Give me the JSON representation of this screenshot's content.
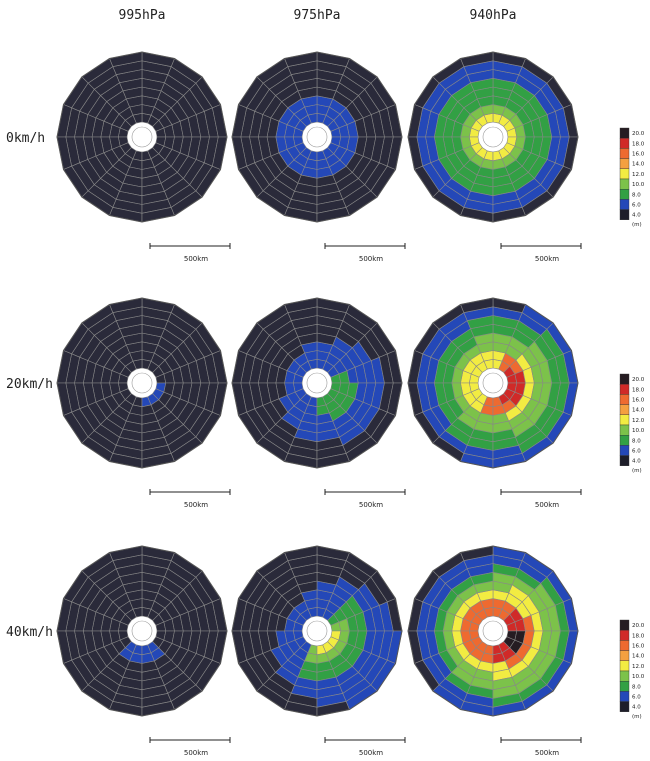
{
  "columns": [
    "995hPa",
    "975hPa",
    "940hPa"
  ],
  "rows": [
    "0km/h",
    "20km/h",
    "40km/h"
  ],
  "scale_bar_label": "500km",
  "legend": {
    "labels": [
      "20.0",
      "18.0",
      "16.0",
      "14.0",
      "12.0",
      "10.0",
      "8.0",
      "6.0",
      "4.0"
    ],
    "unit": "(m)",
    "colors": [
      "#251c22",
      "#d02a28",
      "#ee6a30",
      "#f4a040",
      "#f2ec42",
      "#7cc24a",
      "#32a044",
      "#2448b8",
      "#1e1e2a"
    ]
  },
  "palette": {
    "background_cell": "#2a2a3a",
    "blue": "#2448b8",
    "green": "#32a044",
    "lightgreen": "#7cc24a",
    "yellow": "#f2ec42",
    "orange": "#ee6a30",
    "red": "#d02a28",
    "dark": "#251c22",
    "grid": "#888888"
  },
  "panels": [
    [
      {
        "id": "p-0-0",
        "pattern": "none"
      },
      {
        "id": "p-0-1",
        "pattern": "ring-blue-small"
      },
      {
        "id": "p-0-2",
        "pattern": "ring-940-0"
      }
    ],
    [
      {
        "id": "p-1-0",
        "pattern": "patch-small"
      },
      {
        "id": "p-1-1",
        "pattern": "ring-975-20"
      },
      {
        "id": "p-1-2",
        "pattern": "ring-940-20"
      }
    ],
    [
      {
        "id": "p-2-0",
        "pattern": "patch-small-south"
      },
      {
        "id": "p-2-1",
        "pattern": "ring-975-40"
      },
      {
        "id": "p-2-2",
        "pattern": "ring-940-40"
      }
    ]
  ]
}
